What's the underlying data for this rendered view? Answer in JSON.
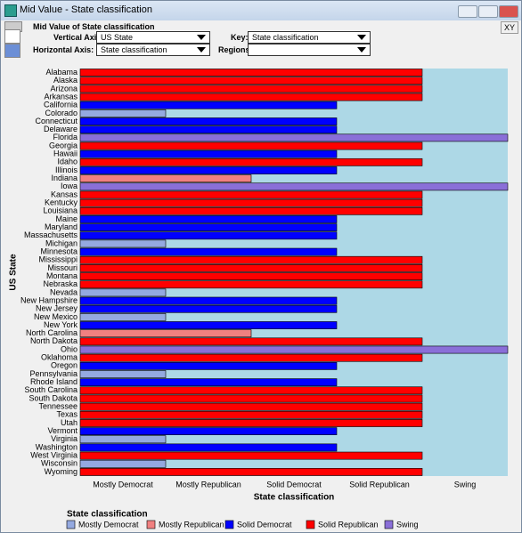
{
  "window": {
    "title": "Mid Value - State classification",
    "xy_button": "XY"
  },
  "toolbar": {
    "heading": "Mid Value of State classification",
    "vertical_axis_label": "Vertical Axis:",
    "vertical_axis_value": "US State",
    "key_label": "Key:",
    "key_value": "State classification",
    "horizontal_axis_label": "Horizontal Axis:",
    "horizontal_axis_value": "State classification",
    "regions_label": "Regions"
  },
  "chart_data": {
    "type": "categorical-bar",
    "xlabel": "State classification",
    "ylabel": "US State",
    "legend_title": "State classification",
    "x_categories": [
      "Mostly Democrat",
      "Mostly Republican",
      "Solid Democrat",
      "Solid Republican",
      "Swing"
    ],
    "colors": [
      "#94a9e0",
      "#f08080",
      "#0000ff",
      "#ff0000",
      "#8a6fd8"
    ],
    "categories": [
      "Alabama",
      "Alaska",
      "Arizona",
      "Arkansas",
      "California",
      "Colorado",
      "Connecticut",
      "Delaware",
      "Florida",
      "Georgia",
      "Hawaii",
      "Idaho",
      "Illinois",
      "Indiana",
      "Iowa",
      "Kansas",
      "Kentucky",
      "Louisiana",
      "Maine",
      "Maryland",
      "Massachusetts",
      "Michigan",
      "Minnesota",
      "Mississippi",
      "Missouri",
      "Montana",
      "Nebraska",
      "Nevada",
      "New Hampshire",
      "New Jersey",
      "New Mexico",
      "New York",
      "North Carolina",
      "North Dakota",
      "Ohio",
      "Oklahoma",
      "Oregon",
      "Pennsylvania",
      "Rhode Island",
      "South Carolina",
      "South Dakota",
      "Tennessee",
      "Texas",
      "Utah",
      "Vermont",
      "Virginia",
      "Washington",
      "West Virginia",
      "Wisconsin",
      "Wyoming"
    ],
    "values": [
      "Solid Republican",
      "Solid Republican",
      "Solid Republican",
      "Solid Republican",
      "Solid Democrat",
      "Mostly Democrat",
      "Solid Democrat",
      "Solid Democrat",
      "Swing",
      "Solid Republican",
      "Solid Democrat",
      "Solid Republican",
      "Solid Democrat",
      "Mostly Republican",
      "Swing",
      "Solid Republican",
      "Solid Republican",
      "Solid Republican",
      "Solid Democrat",
      "Solid Democrat",
      "Solid Democrat",
      "Mostly Democrat",
      "Solid Democrat",
      "Solid Republican",
      "Solid Republican",
      "Solid Republican",
      "Solid Republican",
      "Mostly Democrat",
      "Solid Democrat",
      "Solid Democrat",
      "Mostly Democrat",
      "Solid Democrat",
      "Mostly Republican",
      "Solid Republican",
      "Swing",
      "Solid Republican",
      "Solid Democrat",
      "Mostly Democrat",
      "Solid Democrat",
      "Solid Republican",
      "Solid Republican",
      "Solid Republican",
      "Solid Republican",
      "Solid Republican",
      "Solid Democrat",
      "Mostly Democrat",
      "Solid Democrat",
      "Solid Republican",
      "Mostly Democrat",
      "Solid Republican"
    ]
  }
}
